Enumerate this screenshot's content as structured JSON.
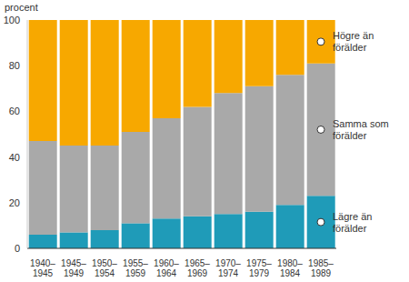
{
  "chart_data": {
    "type": "bar",
    "stacked": true,
    "grid": false,
    "ylabel": "procent",
    "categories": [
      "1940–1945",
      "1945–1949",
      "1950–1954",
      "1955–1959",
      "1960–1964",
      "1965–1969",
      "1970–1974",
      "1975–1979",
      "1980–1984",
      "1985–1989"
    ],
    "ylim": [
      0,
      100
    ],
    "yticks": [
      0,
      20,
      40,
      60,
      80,
      100
    ],
    "series": [
      {
        "name": "Lägre än förälder",
        "color": "#1f9bb8",
        "values": [
          6,
          7,
          8,
          11,
          13,
          14,
          15,
          16,
          19,
          23
        ]
      },
      {
        "name": "Samma som förälder",
        "color": "#a9a9a9",
        "values": [
          41,
          38,
          37,
          40,
          44,
          48,
          53,
          55,
          57,
          58
        ]
      },
      {
        "name": "Högre än förälder",
        "color": "#f7a800",
        "values": [
          53,
          55,
          55,
          49,
          43,
          38,
          32,
          29,
          24,
          19
        ]
      }
    ]
  }
}
